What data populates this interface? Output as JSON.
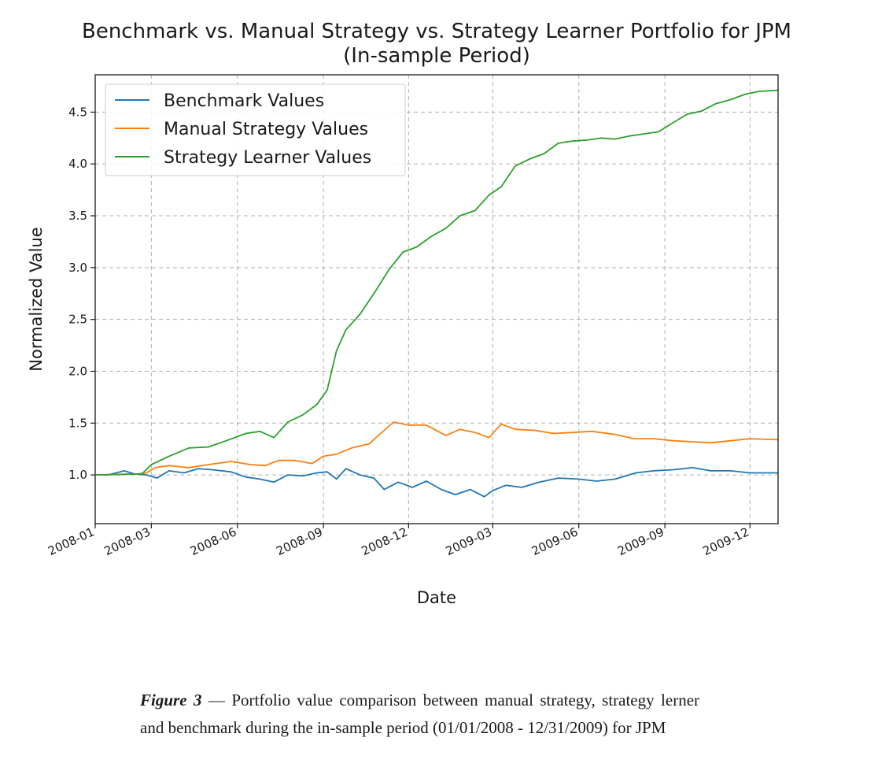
{
  "chart_data": {
    "type": "line",
    "title": "Benchmark vs. Manual Strategy vs. Strategy Learner Portfolio for JPM",
    "subtitle": "(In-sample Period)",
    "xlabel": "Date",
    "ylabel": "Normalized Value",
    "xlim": [
      "2008-01-01",
      "2009-12-31"
    ],
    "ylim": [
      0.53,
      4.86
    ],
    "x_ticks": [
      "2008-01",
      "2008-03",
      "2008-06",
      "2008-09",
      "2008-12",
      "2009-03",
      "2009-06",
      "2009-09",
      "2009-12"
    ],
    "y_ticks": [
      "1.0",
      "1.5",
      "2.0",
      "2.5",
      "3.0",
      "3.5",
      "4.0",
      "4.5"
    ],
    "grid": true,
    "legend_position": "top-left",
    "series": [
      {
        "name": "Benchmark Values",
        "color": "#1f77b4",
        "points": [
          [
            "2008-01-02",
            1.0
          ],
          [
            "2008-01-15",
            1.0
          ],
          [
            "2008-02-01",
            1.04
          ],
          [
            "2008-02-12",
            1.01
          ],
          [
            "2008-02-25",
            1.0
          ],
          [
            "2008-03-07",
            0.97
          ],
          [
            "2008-03-20",
            1.04
          ],
          [
            "2008-04-05",
            1.02
          ],
          [
            "2008-04-20",
            1.06
          ],
          [
            "2008-05-05",
            1.05
          ],
          [
            "2008-05-25",
            1.03
          ],
          [
            "2008-06-10",
            0.98
          ],
          [
            "2008-06-25",
            0.96
          ],
          [
            "2008-07-10",
            0.93
          ],
          [
            "2008-07-25",
            1.0
          ],
          [
            "2008-08-10",
            0.99
          ],
          [
            "2008-08-25",
            1.02
          ],
          [
            "2008-09-05",
            1.03
          ],
          [
            "2008-09-15",
            0.96
          ],
          [
            "2008-09-25",
            1.06
          ],
          [
            "2008-10-10",
            1.0
          ],
          [
            "2008-10-25",
            0.97
          ],
          [
            "2008-11-05",
            0.86
          ],
          [
            "2008-11-20",
            0.93
          ],
          [
            "2008-12-05",
            0.88
          ],
          [
            "2008-12-20",
            0.94
          ],
          [
            "2009-01-05",
            0.86
          ],
          [
            "2009-01-20",
            0.81
          ],
          [
            "2009-02-05",
            0.86
          ],
          [
            "2009-02-20",
            0.79
          ],
          [
            "2009-03-01",
            0.85
          ],
          [
            "2009-03-15",
            0.9
          ],
          [
            "2009-04-01",
            0.88
          ],
          [
            "2009-04-20",
            0.93
          ],
          [
            "2009-05-10",
            0.97
          ],
          [
            "2009-06-01",
            0.96
          ],
          [
            "2009-06-20",
            0.94
          ],
          [
            "2009-07-10",
            0.96
          ],
          [
            "2009-08-01",
            1.02
          ],
          [
            "2009-08-20",
            1.04
          ],
          [
            "2009-09-10",
            1.05
          ],
          [
            "2009-10-01",
            1.07
          ],
          [
            "2009-10-20",
            1.04
          ],
          [
            "2009-11-10",
            1.04
          ],
          [
            "2009-12-01",
            1.02
          ],
          [
            "2009-12-31",
            1.02
          ]
        ]
      },
      {
        "name": "Manual Strategy Values",
        "color": "#ff7f0e",
        "points": [
          [
            "2008-01-02",
            1.0
          ],
          [
            "2008-02-15",
            1.01
          ],
          [
            "2008-02-25",
            1.02
          ],
          [
            "2008-03-05",
            1.07
          ],
          [
            "2008-03-20",
            1.09
          ],
          [
            "2008-04-10",
            1.07
          ],
          [
            "2008-05-01",
            1.1
          ],
          [
            "2008-05-25",
            1.13
          ],
          [
            "2008-06-15",
            1.1
          ],
          [
            "2008-07-01",
            1.09
          ],
          [
            "2008-07-15",
            1.14
          ],
          [
            "2008-08-01",
            1.14
          ],
          [
            "2008-08-20",
            1.11
          ],
          [
            "2008-09-01",
            1.18
          ],
          [
            "2008-09-15",
            1.2
          ],
          [
            "2008-10-01",
            1.26
          ],
          [
            "2008-10-20",
            1.3
          ],
          [
            "2008-11-01",
            1.4
          ],
          [
            "2008-11-15",
            1.51
          ],
          [
            "2008-12-01",
            1.48
          ],
          [
            "2008-12-20",
            1.48
          ],
          [
            "2009-01-10",
            1.38
          ],
          [
            "2009-01-25",
            1.44
          ],
          [
            "2009-02-10",
            1.41
          ],
          [
            "2009-02-25",
            1.36
          ],
          [
            "2009-03-10",
            1.49
          ],
          [
            "2009-03-25",
            1.44
          ],
          [
            "2009-04-15",
            1.43
          ],
          [
            "2009-05-05",
            1.4
          ],
          [
            "2009-05-25",
            1.41
          ],
          [
            "2009-06-15",
            1.42
          ],
          [
            "2009-07-10",
            1.39
          ],
          [
            "2009-07-30",
            1.35
          ],
          [
            "2009-08-20",
            1.35
          ],
          [
            "2009-09-10",
            1.33
          ],
          [
            "2009-09-30",
            1.32
          ],
          [
            "2009-10-20",
            1.31
          ],
          [
            "2009-11-10",
            1.33
          ],
          [
            "2009-12-01",
            1.35
          ],
          [
            "2009-12-31",
            1.34
          ]
        ]
      },
      {
        "name": "Strategy Learner Values",
        "color": "#2ca02c",
        "points": [
          [
            "2008-01-02",
            1.0
          ],
          [
            "2008-02-20",
            1.01
          ],
          [
            "2008-03-01",
            1.1
          ],
          [
            "2008-03-20",
            1.18
          ],
          [
            "2008-04-10",
            1.26
          ],
          [
            "2008-05-01",
            1.27
          ],
          [
            "2008-05-20",
            1.33
          ],
          [
            "2008-06-10",
            1.4
          ],
          [
            "2008-06-25",
            1.42
          ],
          [
            "2008-07-10",
            1.36
          ],
          [
            "2008-07-25",
            1.51
          ],
          [
            "2008-08-10",
            1.58
          ],
          [
            "2008-08-25",
            1.68
          ],
          [
            "2008-09-05",
            1.82
          ],
          [
            "2008-09-15",
            2.2
          ],
          [
            "2008-09-25",
            2.4
          ],
          [
            "2008-10-10",
            2.55
          ],
          [
            "2008-10-25",
            2.75
          ],
          [
            "2008-11-10",
            2.98
          ],
          [
            "2008-11-25",
            3.15
          ],
          [
            "2008-12-10",
            3.2
          ],
          [
            "2008-12-25",
            3.3
          ],
          [
            "2009-01-10",
            3.38
          ],
          [
            "2009-01-25",
            3.5
          ],
          [
            "2009-02-10",
            3.55
          ],
          [
            "2009-02-25",
            3.7
          ],
          [
            "2009-03-10",
            3.78
          ],
          [
            "2009-03-25",
            3.98
          ],
          [
            "2009-04-10",
            4.05
          ],
          [
            "2009-04-25",
            4.1
          ],
          [
            "2009-05-10",
            4.2
          ],
          [
            "2009-05-25",
            4.22
          ],
          [
            "2009-06-10",
            4.23
          ],
          [
            "2009-06-25",
            4.25
          ],
          [
            "2009-07-10",
            4.24
          ],
          [
            "2009-07-25",
            4.27
          ],
          [
            "2009-08-10",
            4.29
          ],
          [
            "2009-08-25",
            4.31
          ],
          [
            "2009-09-10",
            4.4
          ],
          [
            "2009-09-25",
            4.48
          ],
          [
            "2009-10-10",
            4.51
          ],
          [
            "2009-10-25",
            4.58
          ],
          [
            "2009-11-10",
            4.62
          ],
          [
            "2009-11-25",
            4.67
          ],
          [
            "2009-12-10",
            4.7
          ],
          [
            "2009-12-31",
            4.71
          ]
        ]
      }
    ]
  },
  "caption": {
    "figure_ref": "Figure 3",
    "text": "— Portfolio value comparison between manual strategy, strategy lerner and benchmark during the in-sample period (01/01/2008 - 12/31/2009) for JPM"
  }
}
